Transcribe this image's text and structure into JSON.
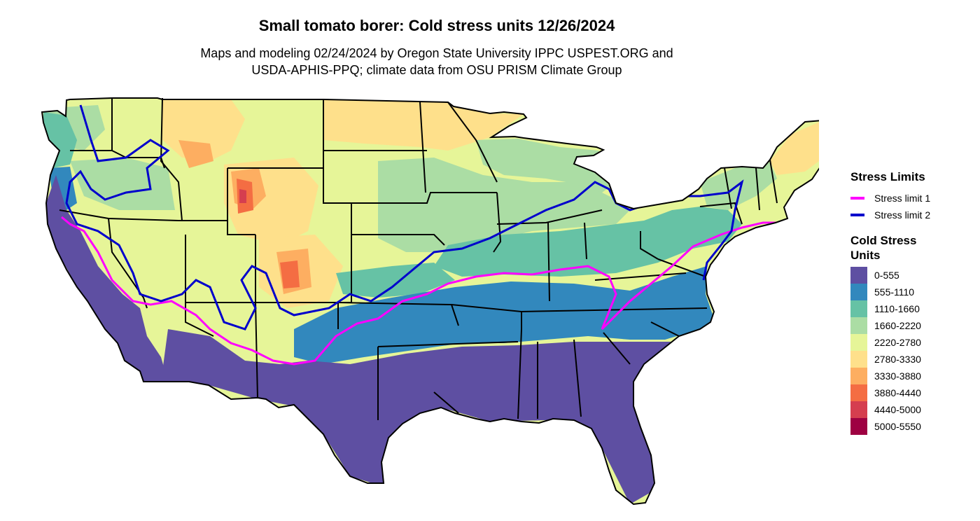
{
  "title": "Small tomato borer: Cold stress units 12/26/2024",
  "subtitle": [
    "Maps and modeling 02/24/2024 by Oregon State University IPPC USPEST.ORG and",
    "USDA-APHIS-PPQ; climate data from OSU PRISM Climate Group"
  ],
  "legend": {
    "stress_limits_title": "Stress Limits",
    "stress_limits": [
      {
        "label": "Stress limit 1",
        "color": "#ff00ff"
      },
      {
        "label": "Stress limit 2",
        "color": "#0000cc"
      }
    ],
    "cold_stress_title": "Cold Stress Units",
    "cold_stress_bins": [
      {
        "label": "0-555",
        "color": "#5e4fa2"
      },
      {
        "label": "555-1110",
        "color": "#3288bd"
      },
      {
        "label": "1110-1660",
        "color": "#66c2a5"
      },
      {
        "label": "1660-2220",
        "color": "#abdda4"
      },
      {
        "label": "2220-2780",
        "color": "#e6f598"
      },
      {
        "label": "2780-3330",
        "color": "#fee08b"
      },
      {
        "label": "3330-3880",
        "color": "#fdae61"
      },
      {
        "label": "3880-4440",
        "color": "#f46d43"
      },
      {
        "label": "4440-5000",
        "color": "#d53e4f"
      },
      {
        "label": "5000-5550",
        "color": "#9e0142"
      }
    ]
  }
}
